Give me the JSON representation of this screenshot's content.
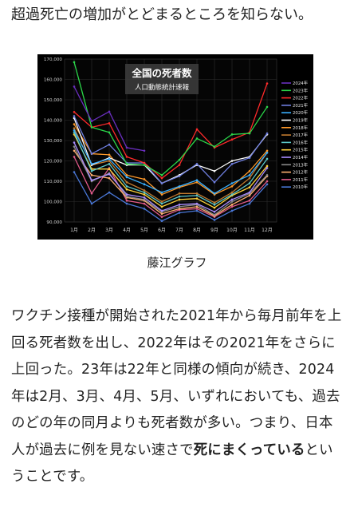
{
  "headline": "超過死亡の増加がとどまるところを知らない。",
  "chart_data": {
    "type": "line",
    "title": "全国の死者数",
    "subtitle": "人口動態統計速報",
    "categories": [
      "1月",
      "2月",
      "3月",
      "4月",
      "5月",
      "6月",
      "7月",
      "8月",
      "9月",
      "10月",
      "11月",
      "12月"
    ],
    "ylim": [
      90000,
      170000
    ],
    "yticks": [
      "90,000",
      "100,000",
      "110,000",
      "120,000",
      "130,000",
      "140,000",
      "150,000",
      "160,000",
      "170,000"
    ],
    "grid": true,
    "legend_position": "right",
    "background": "#000000",
    "series": [
      {
        "name": "2024年",
        "color": "#6a2fbf",
        "values": [
          156500,
          139500,
          144200,
          126500,
          125000,
          null,
          null,
          null,
          null,
          null,
          null,
          null
        ]
      },
      {
        "name": "2023年",
        "color": "#2bd84a",
        "values": [
          168500,
          136500,
          134000,
          118500,
          118000,
          113000,
          120500,
          131000,
          127000,
          133000,
          133500,
          146500
        ]
      },
      {
        "name": "2022年",
        "color": "#ff2a2a",
        "values": [
          144000,
          136500,
          138500,
          122000,
          119000,
          111500,
          118000,
          135500,
          126500,
          130500,
          134000,
          158000
        ]
      },
      {
        "name": "2021年",
        "color": "#6f7fe0",
        "values": [
          142000,
          123500,
          128000,
          119000,
          119000,
          109000,
          112500,
          118500,
          109500,
          118500,
          121500,
          133500
        ]
      },
      {
        "name": "2020年",
        "color": "#3ab0ff",
        "values": [
          135000,
          118500,
          121000,
          112000,
          108500,
          104500,
          107500,
          110500,
          104000,
          109000,
          113000,
          124000
        ]
      },
      {
        "name": "2019年",
        "color": "#ffffff",
        "values": [
          141000,
          118000,
          121500,
          118000,
          118000,
          109000,
          113000,
          118000,
          115000,
          120000,
          122000,
          133000
        ]
      },
      {
        "name": "2018年",
        "color": "#ff9a2a",
        "values": [
          138000,
          123500,
          123000,
          113000,
          111000,
          103500,
          107000,
          109500,
          103500,
          107500,
          115000,
          125000
        ]
      },
      {
        "name": "2017年",
        "color": "#c27a2e",
        "values": [
          136000,
          118000,
          120000,
          109500,
          105500,
          100000,
          104000,
          104000,
          99500,
          104500,
          111500,
          124000
        ]
      },
      {
        "name": "2016年",
        "color": "#5cc8c8",
        "values": [
          134000,
          115000,
          118500,
          107500,
          104500,
          99000,
          102500,
          103000,
          98500,
          103500,
          109000,
          121000
        ]
      },
      {
        "name": "2015年",
        "color": "#ffd23a",
        "values": [
          133000,
          116000,
          116000,
          106000,
          103500,
          97500,
          101000,
          101500,
          97000,
          103000,
          107000,
          117500
        ]
      },
      {
        "name": "2014年",
        "color": "#a98cff",
        "values": [
          129000,
          110500,
          113500,
          103500,
          102000,
          95500,
          98500,
          99000,
          95000,
          101000,
          104500,
          116500
        ]
      },
      {
        "name": "2013年",
        "color": "#8a8a8a",
        "values": [
          127000,
          110000,
          114000,
          102500,
          101000,
          95000,
          97500,
          98500,
          93500,
          100000,
          104000,
          113000
        ]
      },
      {
        "name": "2012年",
        "color": "#ffb070",
        "values": [
          125000,
          113000,
          111500,
          102000,
          100500,
          94000,
          96500,
          97500,
          93000,
          98500,
          103000,
          112500
        ]
      },
      {
        "name": "2011年",
        "color": "#e05a8a",
        "values": [
          122000,
          104000,
          116500,
          100500,
          99000,
          92500,
          96000,
          96500,
          92500,
          97500,
          100500,
          110000
        ]
      },
      {
        "name": "2010年",
        "color": "#4a78d8",
        "values": [
          114500,
          99000,
          104500,
          99000,
          96500,
          90500,
          94500,
          95500,
          91000,
          95500,
          99000,
          108500
        ]
      }
    ]
  },
  "caption": "藤江グラフ",
  "body": {
    "text_pre": "ワクチン接種が開始された2021年から毎月前年を上回る死者数を出し、2022年はその2021年をさらに上回った。23年は22年と同様の傾向が続き、2024年は2月、3月、4月、5月、いずれにおいても、過去のどの年の同月よりも死者数が多い。つまり、日本人が過去に例を見ない速さで",
    "text_bold": "死にまくっている",
    "text_post": "ということです。"
  }
}
